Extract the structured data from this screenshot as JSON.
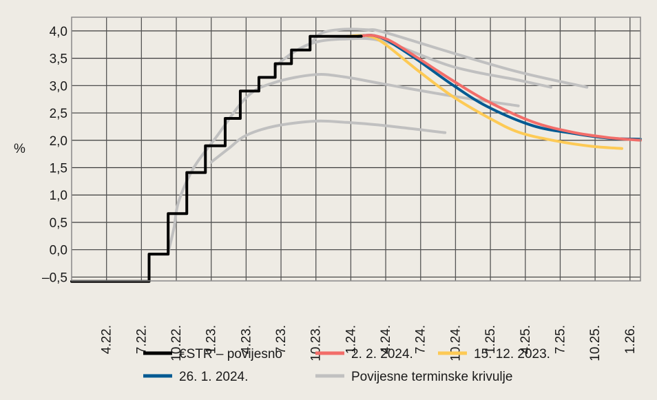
{
  "chart_data": {
    "type": "line",
    "title": "",
    "xlabel": "",
    "ylabel": "%",
    "x_unit": "months since 1.22.",
    "xlim": [
      0,
      48.9
    ],
    "ylim": [
      -0.57,
      4.25
    ],
    "grid": true,
    "x_ticks": [
      {
        "m": 3,
        "label": "4.22."
      },
      {
        "m": 6,
        "label": "7.22."
      },
      {
        "m": 9,
        "label": "10.22."
      },
      {
        "m": 12,
        "label": "1.23."
      },
      {
        "m": 15,
        "label": "4.23."
      },
      {
        "m": 18,
        "label": "7.23."
      },
      {
        "m": 21,
        "label": "10.23."
      },
      {
        "m": 24,
        "label": "1.24."
      },
      {
        "m": 27,
        "label": "4.24."
      },
      {
        "m": 30,
        "label": "7.24."
      },
      {
        "m": 33,
        "label": "10.24."
      },
      {
        "m": 36,
        "label": "1.25."
      },
      {
        "m": 39,
        "label": "4.25."
      },
      {
        "m": 42,
        "label": "7.25."
      },
      {
        "m": 45,
        "label": "10.25."
      },
      {
        "m": 48,
        "label": "1.26."
      }
    ],
    "y_ticks": [
      {
        "v": 4.0,
        "label": "4,0"
      },
      {
        "v": 3.5,
        "label": "3,5"
      },
      {
        "v": 3.0,
        "label": "3,0"
      },
      {
        "v": 2.5,
        "label": "2,5"
      },
      {
        "v": 2.0,
        "label": "2,0"
      },
      {
        "v": 1.5,
        "label": "1,5"
      },
      {
        "v": 1.0,
        "label": "1,0"
      },
      {
        "v": 0.5,
        "label": "0,5"
      },
      {
        "v": 0.0,
        "label": "0,0"
      },
      {
        "v": -0.5,
        "label": "–0,5"
      }
    ],
    "legend_position": "bottom",
    "series": [
      {
        "name": "Povijesne terminske krivulje",
        "color": "#c0c0c0",
        "key": "hist1",
        "legend": true,
        "x": [
          8.3,
          8.8,
          9.2,
          10.5,
          12.4,
          15.1,
          17.5,
          20.9,
          23.4,
          26.8,
          32.7,
          38.4
        ],
        "y": [
          -0.05,
          0.4,
          0.88,
          1.5,
          2.05,
          2.8,
          3.06,
          3.2,
          3.16,
          3.03,
          2.81,
          2.63
        ]
      },
      {
        "name": "",
        "color": "#c0c0c0",
        "key": "hist2",
        "x": [
          12.0,
          13.5,
          15.0,
          17.5,
          20.9,
          23.4,
          26.4,
          32.1
        ],
        "y": [
          1.6,
          1.85,
          2.09,
          2.26,
          2.35,
          2.33,
          2.28,
          2.14
        ]
      },
      {
        "name": "",
        "color": "#c0c0c0",
        "key": "hist3",
        "x": [
          17.5,
          19.0,
          20.9,
          23.4,
          26.8,
          32.7,
          38.4,
          41.2
        ],
        "y": [
          3.35,
          3.6,
          3.79,
          3.85,
          3.81,
          3.35,
          3.1,
          2.97
        ]
      },
      {
        "name": "",
        "color": "#c0c0c0",
        "key": "hist4",
        "x": [
          20.5,
          21.5,
          23.4,
          25.4,
          26.8,
          32.7,
          38.4,
          44.3
        ],
        "y": [
          3.75,
          3.96,
          4.03,
          4.02,
          3.98,
          3.6,
          3.25,
          2.97
        ]
      },
      {
        "name": "15. 12. 2023.",
        "color": "#fdca55",
        "key": "dec15",
        "legend": true,
        "x": [
          23.7,
          25.4,
          26.8,
          29.8,
          32.7,
          35.7,
          38.4,
          41.6,
          44.7,
          47.3
        ],
        "y": [
          3.9,
          3.91,
          3.78,
          3.27,
          2.81,
          2.43,
          2.15,
          1.99,
          1.89,
          1.85
        ]
      },
      {
        "name": "26. 1. 2024.",
        "color": "#005a92",
        "key": "jan26",
        "legend": true,
        "x": [
          24.6,
          25.8,
          26.8,
          27.8,
          29.8,
          32.7,
          35.7,
          39.6,
          43.0,
          46.1,
          48.9
        ],
        "y": [
          3.9,
          3.92,
          3.86,
          3.74,
          3.46,
          3.02,
          2.62,
          2.27,
          2.13,
          2.04,
          2.02
        ]
      },
      {
        "name": "2. 2. 2024.",
        "color": "#f26d69",
        "key": "feb2",
        "legend": true,
        "x": [
          25.0,
          25.8,
          26.8,
          27.8,
          29.8,
          32.7,
          35.7,
          39.6,
          43.0,
          46.1,
          48.9
        ],
        "y": [
          3.91,
          3.92,
          3.87,
          3.77,
          3.5,
          3.1,
          2.72,
          2.34,
          2.15,
          2.05,
          2.0
        ]
      },
      {
        "name": "€STR – povijesno",
        "color": "#000000",
        "key": "estr",
        "legend": true,
        "step": true,
        "x": [
          0,
          6.66,
          8.3,
          9.9,
          11.5,
          13.2,
          14.5,
          16.1,
          17.5,
          18.9,
          20.5,
          24.9
        ],
        "y": [
          -0.58,
          -0.08,
          0.66,
          1.41,
          1.9,
          2.4,
          2.9,
          3.15,
          3.4,
          3.65,
          3.9,
          3.9
        ]
      }
    ],
    "legend": [
      {
        "label": "€STR – povijesno",
        "color": "#000000"
      },
      {
        "label": "2. 2. 2024.",
        "color": "#f26d69"
      },
      {
        "label": "15. 12. 2023.",
        "color": "#fdca55"
      },
      {
        "label": "26. 1. 2024.",
        "color": "#005a92"
      },
      {
        "label": "Povijesne terminske krivulje",
        "color": "#c0c0c0"
      }
    ]
  }
}
